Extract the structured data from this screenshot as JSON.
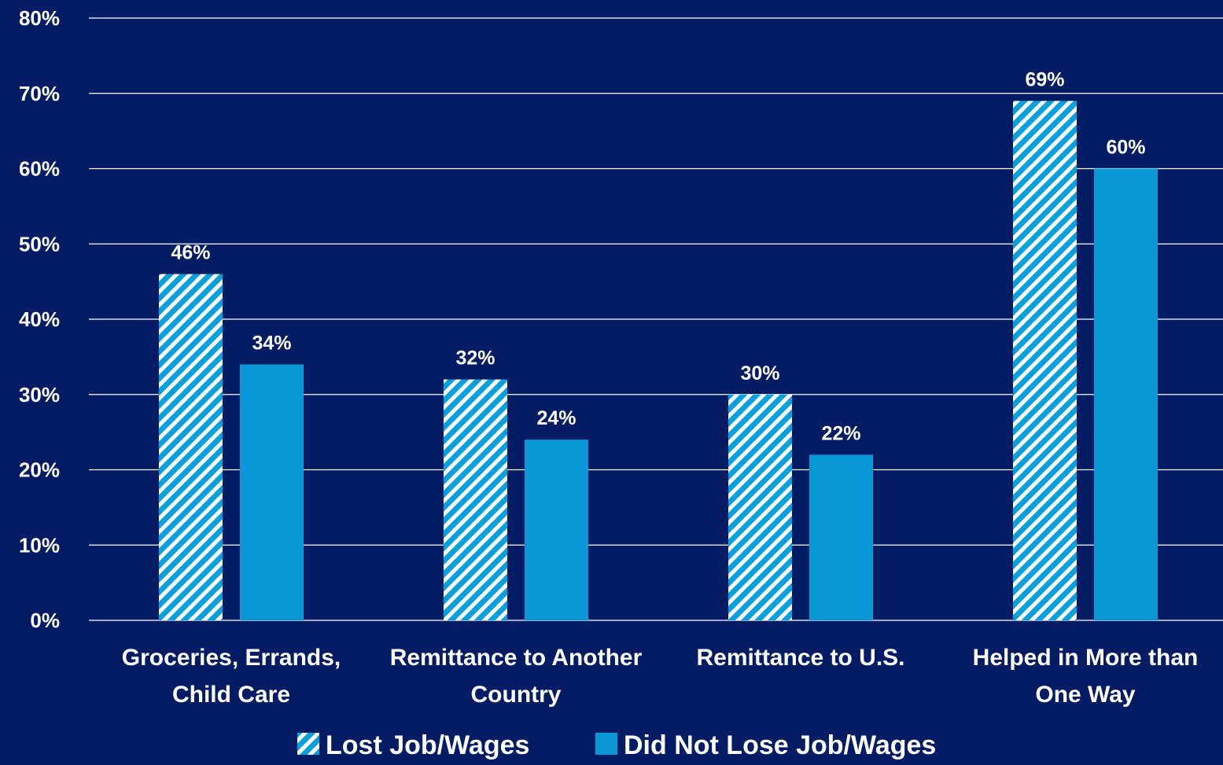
{
  "colors": {
    "background": "#031c63",
    "gridline": "#ffffff",
    "text": "#ffffff",
    "series_lost": "#0aa0db",
    "series_not_lost": "#0898d8"
  },
  "chart_data": {
    "type": "bar",
    "categories": [
      [
        "Groceries, Errands,",
        "Child Care"
      ],
      [
        "Remittance to Another",
        "Country"
      ],
      [
        "Remittance to U.S."
      ],
      [
        "Helped in More than",
        "One Way"
      ]
    ],
    "series": [
      {
        "name": "Lost Job/Wages",
        "pattern": "diagonal-stripes",
        "values": [
          46,
          32,
          30,
          69
        ],
        "value_labels": [
          "46%",
          "32%",
          "30%",
          "69%"
        ]
      },
      {
        "name": "Did Not Lose Job/Wages",
        "pattern": "solid",
        "values": [
          34,
          24,
          22,
          60
        ],
        "value_labels": [
          "34%",
          "24%",
          "22%",
          "60%"
        ]
      }
    ],
    "ylim": [
      0,
      80
    ],
    "y_ticks": [
      0,
      10,
      20,
      30,
      40,
      50,
      60,
      70,
      80
    ],
    "y_tick_labels": [
      "0%",
      "10%",
      "20%",
      "30%",
      "40%",
      "50%",
      "60%",
      "70%",
      "80%"
    ],
    "grid": true,
    "legend_position": "bottom-center",
    "title": "",
    "xlabel": "",
    "ylabel": ""
  }
}
